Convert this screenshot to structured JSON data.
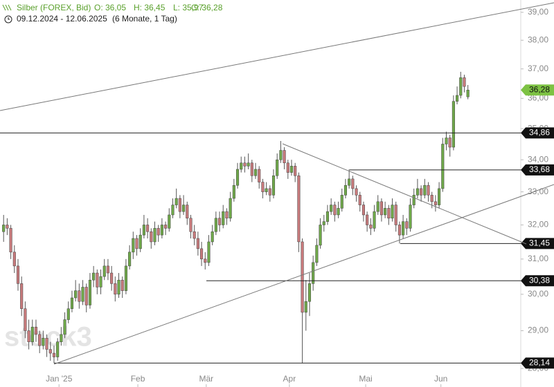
{
  "chart_data": {
    "type": "candlestick",
    "title": "Silber (FOREX, Bid)",
    "ohlc_labels": [
      "O: 36,05",
      "H: 36,45",
      "L: 35,97",
      "C: 36,28"
    ],
    "subtitle": "09.12.2024 - 12.06.2025",
    "period": "(6 Monate, 1 Tag)",
    "watermark": "stock3",
    "log_scale": true,
    "up_color": "#6fa84a",
    "down_color": "#c77a7c",
    "ylim": [
      27.52,
      39.45
    ],
    "yticks": [
      {
        "value": 28,
        "label": "28,00"
      },
      {
        "value": 29,
        "label": "29,00"
      },
      {
        "value": 30,
        "label": "30,00"
      },
      {
        "value": 31,
        "label": "31,00"
      },
      {
        "value": 32,
        "label": "32,00"
      },
      {
        "value": 33,
        "label": "33,00"
      },
      {
        "value": 34,
        "label": "34,00"
      },
      {
        "value": 35,
        "label": "35,00"
      },
      {
        "value": 36,
        "label": "36,00"
      },
      {
        "value": 37,
        "label": "37,00"
      },
      {
        "value": 38,
        "label": "38,00"
      },
      {
        "value": 39,
        "label": "39,00"
      }
    ],
    "xlim": [
      -1,
      143.3
    ],
    "xticks": [
      {
        "value": 15.4,
        "label": "Jan '25"
      },
      {
        "value": 37.3,
        "label": "Feb"
      },
      {
        "value": 56.3,
        "label": "Mär"
      },
      {
        "value": 79.4,
        "label": "Apr"
      },
      {
        "value": 100.6,
        "label": "Mai"
      },
      {
        "value": 121.5,
        "label": "Jun"
      }
    ],
    "open": [
      31.8,
      32.0,
      31.9,
      31.2,
      30.8,
      30.3,
      29.6,
      29.0,
      28.7,
      29.1,
      28.9,
      28.6,
      28.8,
      28.5,
      28.4,
      28.3,
      28.7,
      28.9,
      29.3,
      29.6,
      29.9,
      30.1,
      29.8,
      30.2,
      29.7,
      30.4,
      30.6,
      30.2,
      30.5,
      30.8,
      30.6,
      30.3,
      30.0,
      30.4,
      30.1,
      30.8,
      31.2,
      31.6,
      31.3,
      31.7,
      32.0,
      31.8,
      31.5,
      31.9,
      31.7,
      32.0,
      31.9,
      32.3,
      32.6,
      32.8,
      32.4,
      32.6,
      32.2,
      31.8,
      31.6,
      31.3,
      31.0,
      30.9,
      31.5,
      31.8,
      32.2,
      32.0,
      32.4,
      32.2,
      32.8,
      33.2,
      33.7,
      33.9,
      33.8,
      33.9,
      33.5,
      33.7,
      33.3,
      33.0,
      33.1,
      32.9,
      33.5,
      34.0,
      34.3,
      33.9,
      33.6,
      33.8,
      33.5,
      31.5,
      29.5,
      29.8,
      30.3,
      30.9,
      31.4,
      32.0,
      32.1,
      32.4,
      32.6,
      32.3,
      32.5,
      32.9,
      33.2,
      33.4,
      33.1,
      32.9,
      32.6,
      32.3,
      32.0,
      31.9,
      32.4,
      32.7,
      32.3,
      32.5,
      32.2,
      32.6,
      32.0,
      31.7,
      32.1,
      31.9,
      32.6,
      32.9,
      33.1,
      32.9,
      33.2,
      32.9,
      32.7,
      32.6,
      33.1,
      34.5,
      34.7,
      34.4,
      35.9,
      36.1,
      36.7,
      36.05
    ],
    "high": [
      32.3,
      32.2,
      32.0,
      31.4,
      31.0,
      30.5,
      29.8,
      29.3,
      29.3,
      29.3,
      29.0,
      29.0,
      28.9,
      28.7,
      28.6,
      28.8,
      29.1,
      29.5,
      29.8,
      30.1,
      30.4,
      30.3,
      30.4,
      30.3,
      30.6,
      30.8,
      30.7,
      30.7,
      31.0,
      31.0,
      30.8,
      30.5,
      30.6,
      30.5,
      31.0,
      31.4,
      31.8,
      31.7,
      31.9,
      32.3,
      32.2,
      31.9,
      32.1,
      32.0,
      32.2,
      32.1,
      32.5,
      32.8,
      33.1,
      32.9,
      32.9,
      32.7,
      32.3,
      32.0,
      31.8,
      31.5,
      31.2,
      31.7,
      32.0,
      32.4,
      32.4,
      32.6,
      32.5,
      33.0,
      33.4,
      33.9,
      34.1,
      34.1,
      34.2,
      34.0,
      33.9,
      33.8,
      33.4,
      33.3,
      33.2,
      33.7,
      34.2,
      34.6,
      34.4,
      34.0,
      34.0,
      33.9,
      33.6,
      31.6,
      30.4,
      30.6,
      31.1,
      31.6,
      32.2,
      32.3,
      32.6,
      32.8,
      32.7,
      32.7,
      33.1,
      33.4,
      33.7,
      33.5,
      33.2,
      33.0,
      32.7,
      32.4,
      32.2,
      32.6,
      32.9,
      32.8,
      32.7,
      32.6,
      32.8,
      32.7,
      32.1,
      32.3,
      32.2,
      32.8,
      33.1,
      33.4,
      33.2,
      33.4,
      33.3,
      33.0,
      32.9,
      33.3,
      34.7,
      34.9,
      34.8,
      36.1,
      36.4,
      36.9,
      36.8,
      36.45
    ],
    "low": [
      31.5,
      31.7,
      31.0,
      30.6,
      30.1,
      29.4,
      28.8,
      28.5,
      28.6,
      28.7,
      28.4,
      28.5,
      28.3,
      28.2,
      28.14,
      28.2,
      28.6,
      28.8,
      29.2,
      29.5,
      29.8,
      29.6,
      29.7,
      29.5,
      29.6,
      30.2,
      30.0,
      30.0,
      30.4,
      30.4,
      30.1,
      29.8,
      29.9,
      29.9,
      30.0,
      30.7,
      31.0,
      31.1,
      31.2,
      31.6,
      31.6,
      31.3,
      31.4,
      31.5,
      31.6,
      31.7,
      31.8,
      32.2,
      32.5,
      32.2,
      32.3,
      32.0,
      31.6,
      31.4,
      31.1,
      30.8,
      30.7,
      30.8,
      31.4,
      31.7,
      31.8,
      31.9,
      32.0,
      32.1,
      32.7,
      33.1,
      33.6,
      33.6,
      33.7,
      33.3,
      33.4,
      33.1,
      32.8,
      32.9,
      32.7,
      32.8,
      33.4,
      33.9,
      33.7,
      33.4,
      33.5,
      33.3,
      31.2,
      28.14,
      29.0,
      29.4,
      30.1,
      30.8,
      31.3,
      31.8,
      32.0,
      32.3,
      32.1,
      32.2,
      32.4,
      32.8,
      33.1,
      32.9,
      32.7,
      32.4,
      32.1,
      31.8,
      31.7,
      31.8,
      32.3,
      32.1,
      32.2,
      32.0,
      32.1,
      31.8,
      31.45,
      31.6,
      31.7,
      31.8,
      32.5,
      32.8,
      32.7,
      32.8,
      32.7,
      32.5,
      32.4,
      32.5,
      33.0,
      34.3,
      34.1,
      34.3,
      35.8,
      36.0,
      36.2,
      35.97
    ],
    "close": [
      32.0,
      31.9,
      31.2,
      30.8,
      30.3,
      29.6,
      29.0,
      28.7,
      29.1,
      28.9,
      28.6,
      28.8,
      28.5,
      28.4,
      28.3,
      28.7,
      28.9,
      29.3,
      29.6,
      29.9,
      30.1,
      29.8,
      30.2,
      29.7,
      30.4,
      30.6,
      30.2,
      30.5,
      30.8,
      30.6,
      30.3,
      30.0,
      30.4,
      30.1,
      30.8,
      31.2,
      31.6,
      31.3,
      31.7,
      32.0,
      31.8,
      31.5,
      31.9,
      31.7,
      32.0,
      31.9,
      32.3,
      32.6,
      32.8,
      32.4,
      32.6,
      32.2,
      31.8,
      31.6,
      31.3,
      31.0,
      30.9,
      31.5,
      31.8,
      32.2,
      32.0,
      32.4,
      32.2,
      32.8,
      33.2,
      33.7,
      33.9,
      33.8,
      33.9,
      33.5,
      33.7,
      33.3,
      33.0,
      33.1,
      32.9,
      33.5,
      34.0,
      34.3,
      33.9,
      33.6,
      33.8,
      33.5,
      31.5,
      29.5,
      29.8,
      30.3,
      30.9,
      31.4,
      32.0,
      32.1,
      32.4,
      32.6,
      32.3,
      32.5,
      32.9,
      33.2,
      33.4,
      33.1,
      32.9,
      32.6,
      32.3,
      32.0,
      31.9,
      32.4,
      32.7,
      32.3,
      32.5,
      32.2,
      32.6,
      32.0,
      31.7,
      32.1,
      31.9,
      32.6,
      32.9,
      33.1,
      32.9,
      33.2,
      32.9,
      32.7,
      32.6,
      33.1,
      34.5,
      34.7,
      34.4,
      35.9,
      36.1,
      36.7,
      36.4,
      36.28
    ],
    "levels": [
      {
        "value": 36.28,
        "label": "36,28",
        "color": "#7dc243"
      },
      {
        "value": 34.86,
        "label": "34,86",
        "color": "#111111"
      },
      {
        "value": 33.68,
        "label": "33,68",
        "color": "#111111"
      },
      {
        "value": 31.45,
        "label": "31,45",
        "color": "#111111"
      },
      {
        "value": 30.38,
        "label": "30,38",
        "color": "#111111"
      },
      {
        "value": 28.14,
        "label": "28,14",
        "color": "#111111"
      }
    ]
  }
}
